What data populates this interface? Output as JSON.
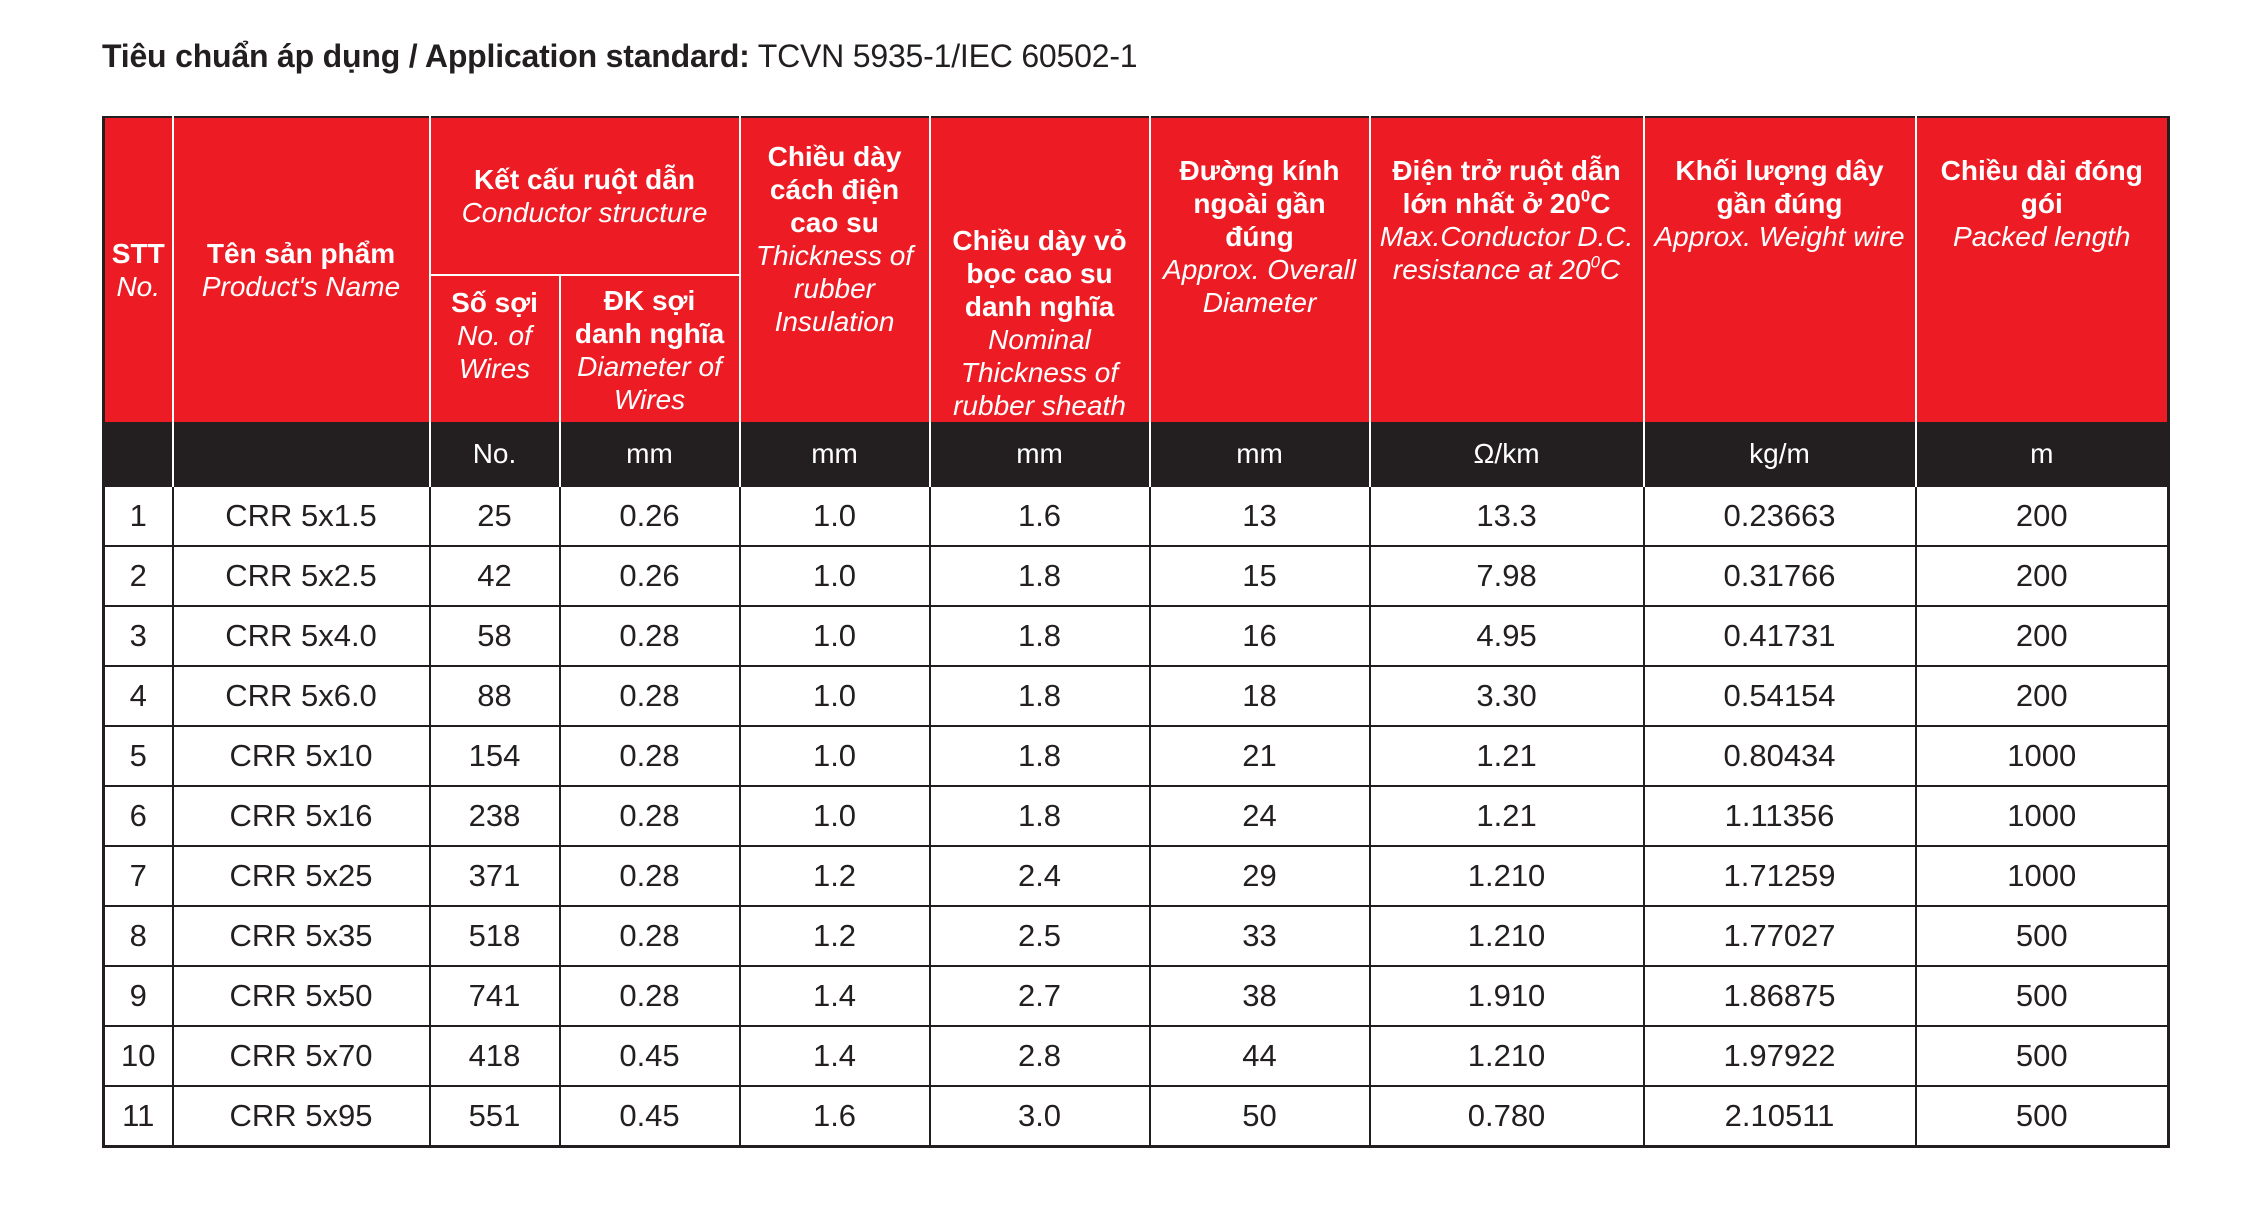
{
  "title": {
    "label": "Tiêu chuẩn áp dụng / Application standard:",
    "value": "TCVN 5935-1/IEC 60502-1"
  },
  "colors": {
    "header_red": "#ed1c24",
    "unit_bar": "#231f20"
  },
  "headers": {
    "stt": {
      "vi": "STT",
      "en": "No."
    },
    "name": {
      "vi": "Tên sản phẩm",
      "en": "Product's Name"
    },
    "conductor": {
      "vi": "Kết cấu ruột dẫn",
      "en": "Conductor structure"
    },
    "wires": {
      "vi": "Số sợi",
      "en": "No. of Wires",
      "unit": "No."
    },
    "wire_dia": {
      "vi": "ĐK sợi danh nghĩa",
      "en": "Diameter of Wires",
      "unit": "mm"
    },
    "insulation": {
      "vi": "Chiều dày cách điện cao su",
      "en": "Thickness of rubber Insulation",
      "unit": "mm"
    },
    "sheath": {
      "vi": "Chiều dày vỏ bọc cao su danh nghĩa",
      "en": "Nominal Thickness of rubber sheath",
      "unit": "mm"
    },
    "diameter": {
      "vi": "Đường kính ngoài gần đúng",
      "en": "Approx. Overall Diameter",
      "unit": "mm"
    },
    "resistance": {
      "vi_a": "Điện trở ruột dẫn lớn nhất ở 20",
      "vi_sup": "0",
      "vi_b": "C",
      "en_a": "Max.Conductor D.C. resistance at 20",
      "en_sup": "0",
      "en_b": "C",
      "unit": "Ω/km"
    },
    "weight": {
      "vi": "Khối lượng dây gần đúng",
      "en": "Approx. Weight wire",
      "unit": "kg/m"
    },
    "length": {
      "vi": "Chiều dài đóng gói",
      "en": "Packed length",
      "unit": "m"
    }
  },
  "rows": [
    [
      "1",
      "CRR 5x1.5",
      "25",
      "0.26",
      "1.0",
      "1.6",
      "13",
      "13.3",
      "0.23663",
      "200"
    ],
    [
      "2",
      "CRR 5x2.5",
      "42",
      "0.26",
      "1.0",
      "1.8",
      "15",
      "7.98",
      "0.31766",
      "200"
    ],
    [
      "3",
      "CRR 5x4.0",
      "58",
      "0.28",
      "1.0",
      "1.8",
      "16",
      "4.95",
      "0.41731",
      "200"
    ],
    [
      "4",
      "CRR 5x6.0",
      "88",
      "0.28",
      "1.0",
      "1.8",
      "18",
      "3.30",
      "0.54154",
      "200"
    ],
    [
      "5",
      "CRR 5x10",
      "154",
      "0.28",
      "1.0",
      "1.8",
      "21",
      "1.21",
      "0.80434",
      "1000"
    ],
    [
      "6",
      "CRR 5x16",
      "238",
      "0.28",
      "1.0",
      "1.8",
      "24",
      "1.21",
      "1.11356",
      "1000"
    ],
    [
      "7",
      "CRR 5x25",
      "371",
      "0.28",
      "1.2",
      "2.4",
      "29",
      "1.210",
      "1.71259",
      "1000"
    ],
    [
      "8",
      "CRR 5x35",
      "518",
      "0.28",
      "1.2",
      "2.5",
      "33",
      "1.210",
      "1.77027",
      "500"
    ],
    [
      "9",
      "CRR 5x50",
      "741",
      "0.28",
      "1.4",
      "2.7",
      "38",
      "1.910",
      "1.86875",
      "500"
    ],
    [
      "10",
      "CRR 5x70",
      "418",
      "0.45",
      "1.4",
      "2.8",
      "44",
      "1.210",
      "1.97922",
      "500"
    ],
    [
      "11",
      "CRR 5x95",
      "551",
      "0.45",
      "1.6",
      "3.0",
      "50",
      "0.780",
      "2.10511",
      "500"
    ]
  ]
}
